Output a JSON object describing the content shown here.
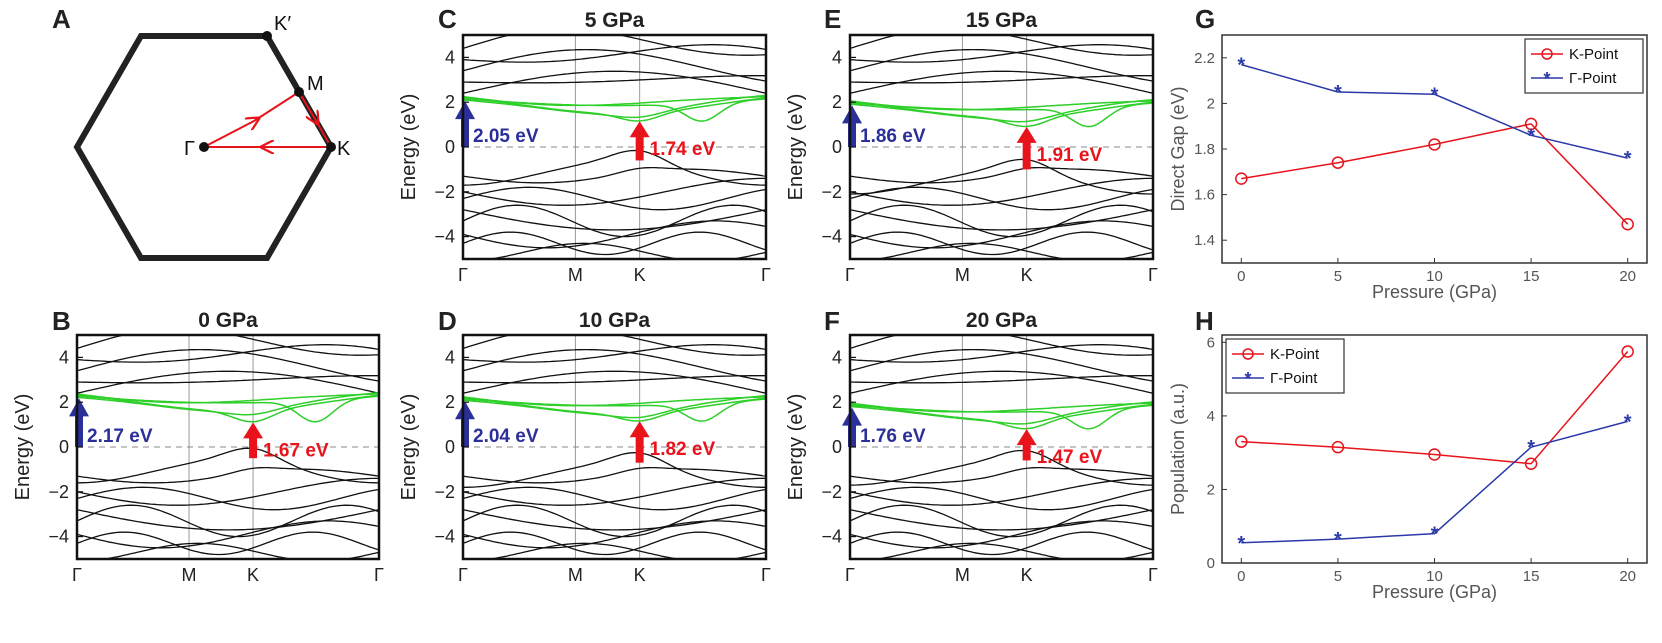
{
  "panel_labels": [
    "A",
    "B",
    "C",
    "D",
    "E",
    "F",
    "G",
    "H"
  ],
  "bz": {
    "points": {
      "gamma": "Γ",
      "k": "K",
      "m": "M",
      "kprime": "K′"
    },
    "colors": {
      "hexagon": "#222222",
      "path": "#e8131b"
    }
  },
  "colors": {
    "bands": "#111111",
    "bands_green": "#2fcf2a",
    "gamma_arrow": "#2b2f9a",
    "k_arrow": "#e8131b",
    "k_series": "#e8131b",
    "gamma_series": "#2b3aa8"
  },
  "chart_data": [
    {
      "type": "line",
      "id": "B",
      "title": "0 GPa",
      "ylabel": "Energy (eV)",
      "ylim": [
        -5,
        5
      ],
      "yticks": [
        4,
        2,
        0,
        -2,
        -4
      ],
      "ytick_labels": [
        "4",
        "2",
        "0",
        "−2",
        "−4"
      ],
      "kpath_labels": [
        "Γ",
        "M",
        "K",
        "Γ"
      ],
      "gamma_gap": {
        "label": "2.17 eV",
        "value": 2.17
      },
      "k_gap": {
        "label": "1.67 eV",
        "value": 1.67
      },
      "cb_k_min": 1.1,
      "vb_k_max": -0.5
    },
    {
      "type": "line",
      "id": "C",
      "title": "5 GPa",
      "ylabel": "Energy (eV)",
      "ylim": [
        -5,
        5
      ],
      "yticks": [
        4,
        2,
        0,
        -2,
        -4
      ],
      "ytick_labels": [
        "4",
        "2",
        "0",
        "−2",
        "−4"
      ],
      "kpath_labels": [
        "Γ",
        "M",
        "K",
        "Γ"
      ],
      "gamma_gap": {
        "label": "2.05 eV",
        "value": 2.05
      },
      "k_gap": {
        "label": "1.74 eV",
        "value": 1.74
      },
      "cb_k_min": 1.15,
      "vb_k_max": -0.6
    },
    {
      "type": "line",
      "id": "D",
      "title": "10 GPa",
      "ylabel": "Energy (eV)",
      "ylim": [
        -5,
        5
      ],
      "yticks": [
        4,
        2,
        0,
        -2,
        -4
      ],
      "ytick_labels": [
        "4",
        "2",
        "0",
        "−2",
        "−4"
      ],
      "kpath_labels": [
        "Γ",
        "M",
        "K",
        "Γ"
      ],
      "gamma_gap": {
        "label": "2.04 eV",
        "value": 2.04
      },
      "k_gap": {
        "label": "1.82 eV",
        "value": 1.82
      },
      "cb_k_min": 1.15,
      "vb_k_max": -0.7
    },
    {
      "type": "line",
      "id": "E",
      "title": "15 GPa",
      "ylabel": "Energy (eV)",
      "ylim": [
        -5,
        5
      ],
      "yticks": [
        4,
        2,
        0,
        -2,
        -4
      ],
      "ytick_labels": [
        "4",
        "2",
        "0",
        "−2",
        "−4"
      ],
      "kpath_labels": [
        "Γ",
        "M",
        "K",
        "Γ"
      ],
      "gamma_gap": {
        "label": "1.86 eV",
        "value": 1.86
      },
      "k_gap": {
        "label": "1.91 eV",
        "value": 1.91
      },
      "cb_k_min": 0.9,
      "vb_k_max": -1.0
    },
    {
      "type": "line",
      "id": "F",
      "title": "20 GPa",
      "ylabel": "Energy (eV)",
      "ylim": [
        -5,
        5
      ],
      "yticks": [
        4,
        2,
        0,
        -2,
        -4
      ],
      "ytick_labels": [
        "4",
        "2",
        "0",
        "−2",
        "−4"
      ],
      "kpath_labels": [
        "Γ",
        "M",
        "K",
        "Γ"
      ],
      "gamma_gap": {
        "label": "1.76 eV",
        "value": 1.76
      },
      "k_gap": {
        "label": "1.47 eV",
        "value": 1.47
      },
      "cb_k_min": 0.8,
      "vb_k_max": -0.6
    },
    {
      "type": "line",
      "id": "G",
      "title": "",
      "xlabel": "Pressure (GPa)",
      "ylabel": "Direct Gap (eV)",
      "xlim": [
        -1,
        21
      ],
      "ylim": [
        1.3,
        2.3
      ],
      "xticks": [
        0,
        5,
        10,
        15,
        20
      ],
      "yticks": [
        1.4,
        1.6,
        1.8,
        2,
        2.2
      ],
      "ytick_labels": [
        "1.4",
        "1.6",
        "1.8",
        "2",
        "2.2"
      ],
      "legend_position": "top-right",
      "x": [
        0,
        5,
        10,
        15,
        20
      ],
      "series": [
        {
          "name": "K-Point",
          "marker": "circle",
          "values": [
            1.67,
            1.74,
            1.82,
            1.91,
            1.47
          ]
        },
        {
          "name": "Γ-Point",
          "marker": "star",
          "values": [
            2.17,
            2.05,
            2.04,
            1.86,
            1.76
          ]
        }
      ]
    },
    {
      "type": "line",
      "id": "H",
      "title": "",
      "xlabel": "Pressure (GPa)",
      "ylabel": "Population (a.u.)",
      "xlim": [
        -1,
        21
      ],
      "ylim": [
        0,
        6.2
      ],
      "xticks": [
        0,
        5,
        10,
        15,
        20
      ],
      "yticks": [
        0,
        2,
        4,
        6
      ],
      "ytick_labels": [
        "0",
        "2",
        "4",
        "6"
      ],
      "legend_position": "top-left",
      "x": [
        0,
        5,
        10,
        15,
        20
      ],
      "series": [
        {
          "name": "K-Point",
          "marker": "circle",
          "values": [
            3.3,
            3.15,
            2.95,
            2.7,
            5.75
          ]
        },
        {
          "name": "Γ-Point",
          "marker": "star",
          "values": [
            0.55,
            0.65,
            0.8,
            3.15,
            3.85
          ]
        }
      ]
    }
  ]
}
